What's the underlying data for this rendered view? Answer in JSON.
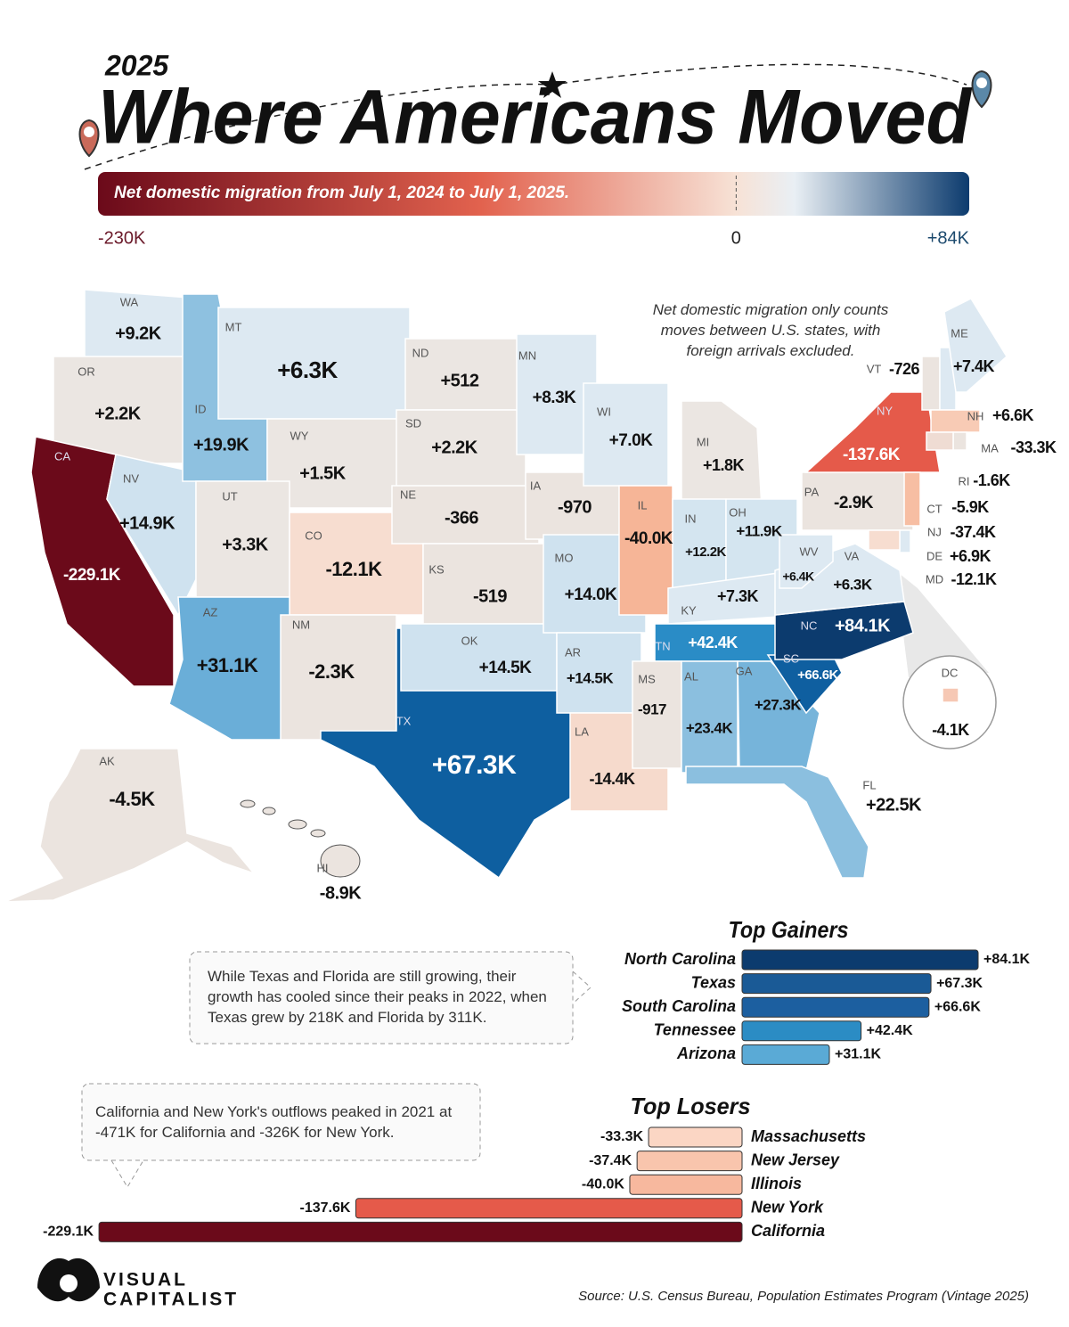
{
  "header": {
    "year": "2025",
    "title": "Where Americans Moved",
    "subtitle": "Net domestic migration from July 1, 2024 to July 1, 2025."
  },
  "color_scale": {
    "min": {
      "value": -230000,
      "label": "-230K"
    },
    "zero": 0,
    "max": {
      "value": 84000,
      "label": "+84K"
    },
    "colors": [
      "#6b0a1a",
      "#e2624e",
      "#f7e2d6",
      "#e9eff4",
      "#0c3b6e"
    ]
  },
  "map": {
    "note": "Net domestic migration only counts moves between U.S. states, with foreign arrivals excluded.",
    "states": [
      {
        "abbr": "WA",
        "label": "+9.2K",
        "color": "#dde9f2"
      },
      {
        "abbr": "OR",
        "label": "+2.2K",
        "color": "#ebe6e2"
      },
      {
        "abbr": "CA",
        "label": "-229.1K",
        "color": "#6b0a1a"
      },
      {
        "abbr": "NV",
        "label": "+14.9K",
        "color": "#cfe2ef"
      },
      {
        "abbr": "ID",
        "label": "+19.9K",
        "color": "#8ec1e0"
      },
      {
        "abbr": "MT",
        "label": "+6.3K",
        "color": "#dde9f2"
      },
      {
        "abbr": "WY",
        "label": "+1.5K",
        "color": "#ebe6e2"
      },
      {
        "abbr": "UT",
        "label": "+3.3K",
        "color": "#ebe6e2"
      },
      {
        "abbr": "CO",
        "label": "-12.1K",
        "color": "#f7ddd0"
      },
      {
        "abbr": "AZ",
        "label": "+31.1K",
        "color": "#6aaed8"
      },
      {
        "abbr": "NM",
        "label": "-2.3K",
        "color": "#ebe4df"
      },
      {
        "abbr": "ND",
        "label": "+512",
        "color": "#ebe6e2"
      },
      {
        "abbr": "SD",
        "label": "+2.2K",
        "color": "#ebe6e2"
      },
      {
        "abbr": "NE",
        "label": "-366",
        "color": "#ebe4df"
      },
      {
        "abbr": "KS",
        "label": "-519",
        "color": "#ebe4df"
      },
      {
        "abbr": "TX",
        "label": "+67.3K",
        "color": "#0e5fa0"
      },
      {
        "abbr": "OK",
        "label": "+14.5K",
        "color": "#cfe2ef"
      },
      {
        "abbr": "MN",
        "label": "+8.3K",
        "color": "#dde9f2"
      },
      {
        "abbr": "IA",
        "label": "-970",
        "color": "#ebe4df"
      },
      {
        "abbr": "MO",
        "label": "+14.0K",
        "color": "#cfe2ef"
      },
      {
        "abbr": "AR",
        "label": "+14.5K",
        "color": "#cfe2ef"
      },
      {
        "abbr": "LA",
        "label": "-14.4K",
        "color": "#f6dacc"
      },
      {
        "abbr": "WI",
        "label": "+7.0K",
        "color": "#dde9f2"
      },
      {
        "abbr": "IL",
        "label": "-40.0K",
        "color": "#f6b597"
      },
      {
        "abbr": "MI",
        "label": "+1.8K",
        "color": "#ebe6e2"
      },
      {
        "abbr": "IN",
        "label": "+12.2K",
        "color": "#d4e5f0"
      },
      {
        "abbr": "OH",
        "label": "+11.9K",
        "color": "#d4e5f0"
      },
      {
        "abbr": "KY",
        "label": "+7.3K",
        "color": "#dde9f2"
      },
      {
        "abbr": "TN",
        "label": "+42.4K",
        "color": "#2a8cc6"
      },
      {
        "abbr": "MS",
        "label": "-917",
        "color": "#ebe4df"
      },
      {
        "abbr": "AL",
        "label": "+23.4K",
        "color": "#8bbfdf"
      },
      {
        "abbr": "GA",
        "label": "+27.3K",
        "color": "#76b4da"
      },
      {
        "abbr": "FL",
        "label": "+22.5K",
        "color": "#8bbfdf"
      },
      {
        "abbr": "SC",
        "label": "+66.6K",
        "color": "#0f5fa0"
      },
      {
        "abbr": "NC",
        "label": "+84.1K",
        "color": "#0c3b6e"
      },
      {
        "abbr": "VA",
        "label": "+6.3K",
        "color": "#dde9f2"
      },
      {
        "abbr": "WV",
        "label": "+6.4K",
        "color": "#dde9f2"
      },
      {
        "abbr": "PA",
        "label": "-2.9K",
        "color": "#ebe4df"
      },
      {
        "abbr": "NY",
        "label": "-137.6K",
        "color": "#e55a4a"
      },
      {
        "abbr": "VT",
        "label": "-726",
        "color": "#ebe4df"
      },
      {
        "abbr": "NH",
        "label": "+6.6K",
        "color": "#dde9f2"
      },
      {
        "abbr": "ME",
        "label": "+7.4K",
        "color": "#dde9f2"
      },
      {
        "abbr": "MA",
        "label": "-33.3K",
        "color": "#f8cbb5"
      },
      {
        "abbr": "RI",
        "label": "-1.6K",
        "color": "#ebe4df"
      },
      {
        "abbr": "CT",
        "label": "-5.9K",
        "color": "#efdcd3"
      },
      {
        "abbr": "NJ",
        "label": "-37.4K",
        "color": "#f7bea3"
      },
      {
        "abbr": "DE",
        "label": "+6.9K",
        "color": "#dde9f2"
      },
      {
        "abbr": "MD",
        "label": "-12.1K",
        "color": "#f7ddd0"
      },
      {
        "abbr": "DC",
        "label": "-4.1K",
        "color": "#f6c8b4"
      },
      {
        "abbr": "AK",
        "label": "-4.5K",
        "color": "#ebe4df"
      },
      {
        "abbr": "HI",
        "label": "-8.9K",
        "color": "#ebe4df"
      }
    ]
  },
  "callouts": [
    "While Texas and Florida are still growing, their growth has cooled since their peaks in 2022, when Texas grew by 218K and Florida by 311K.",
    "California and New York's outflows peaked in 2021 at -471K for California and -326K for New York."
  ],
  "chart_data": [
    {
      "type": "bar",
      "orientation": "horizontal",
      "title": "Top Gainers",
      "categories": [
        "North Carolina",
        "Texas",
        "South Carolina",
        "Tennessee",
        "Arizona"
      ],
      "values": [
        84100,
        67300,
        66600,
        42400,
        31100
      ],
      "value_labels": [
        "+84.1K",
        "+67.3K",
        "+66.6K",
        "+42.4K",
        "+31.1K"
      ],
      "colors": [
        "#0c3b6e",
        "#1a5a96",
        "#1c5fa0",
        "#2b8cc4",
        "#5aaad6"
      ]
    },
    {
      "type": "bar",
      "orientation": "horizontal",
      "title": "Top Losers",
      "categories": [
        "Massachusetts",
        "New Jersey",
        "Illinois",
        "New York",
        "California"
      ],
      "values": [
        -33300,
        -37400,
        -40000,
        -137600,
        -229100
      ],
      "value_labels": [
        "-33.3K",
        "-37.4K",
        "-40.0K",
        "-137.6K",
        "-229.1K"
      ],
      "colors": [
        "#fbd6c4",
        "#f9c5ad",
        "#f7b89e",
        "#e55a4a",
        "#6b0a1a"
      ]
    }
  ],
  "source": "Source: U.S. Census Bureau, Population Estimates Program (Vintage 2025)",
  "logo": [
    "VISUAL",
    "CAPITALIST"
  ]
}
